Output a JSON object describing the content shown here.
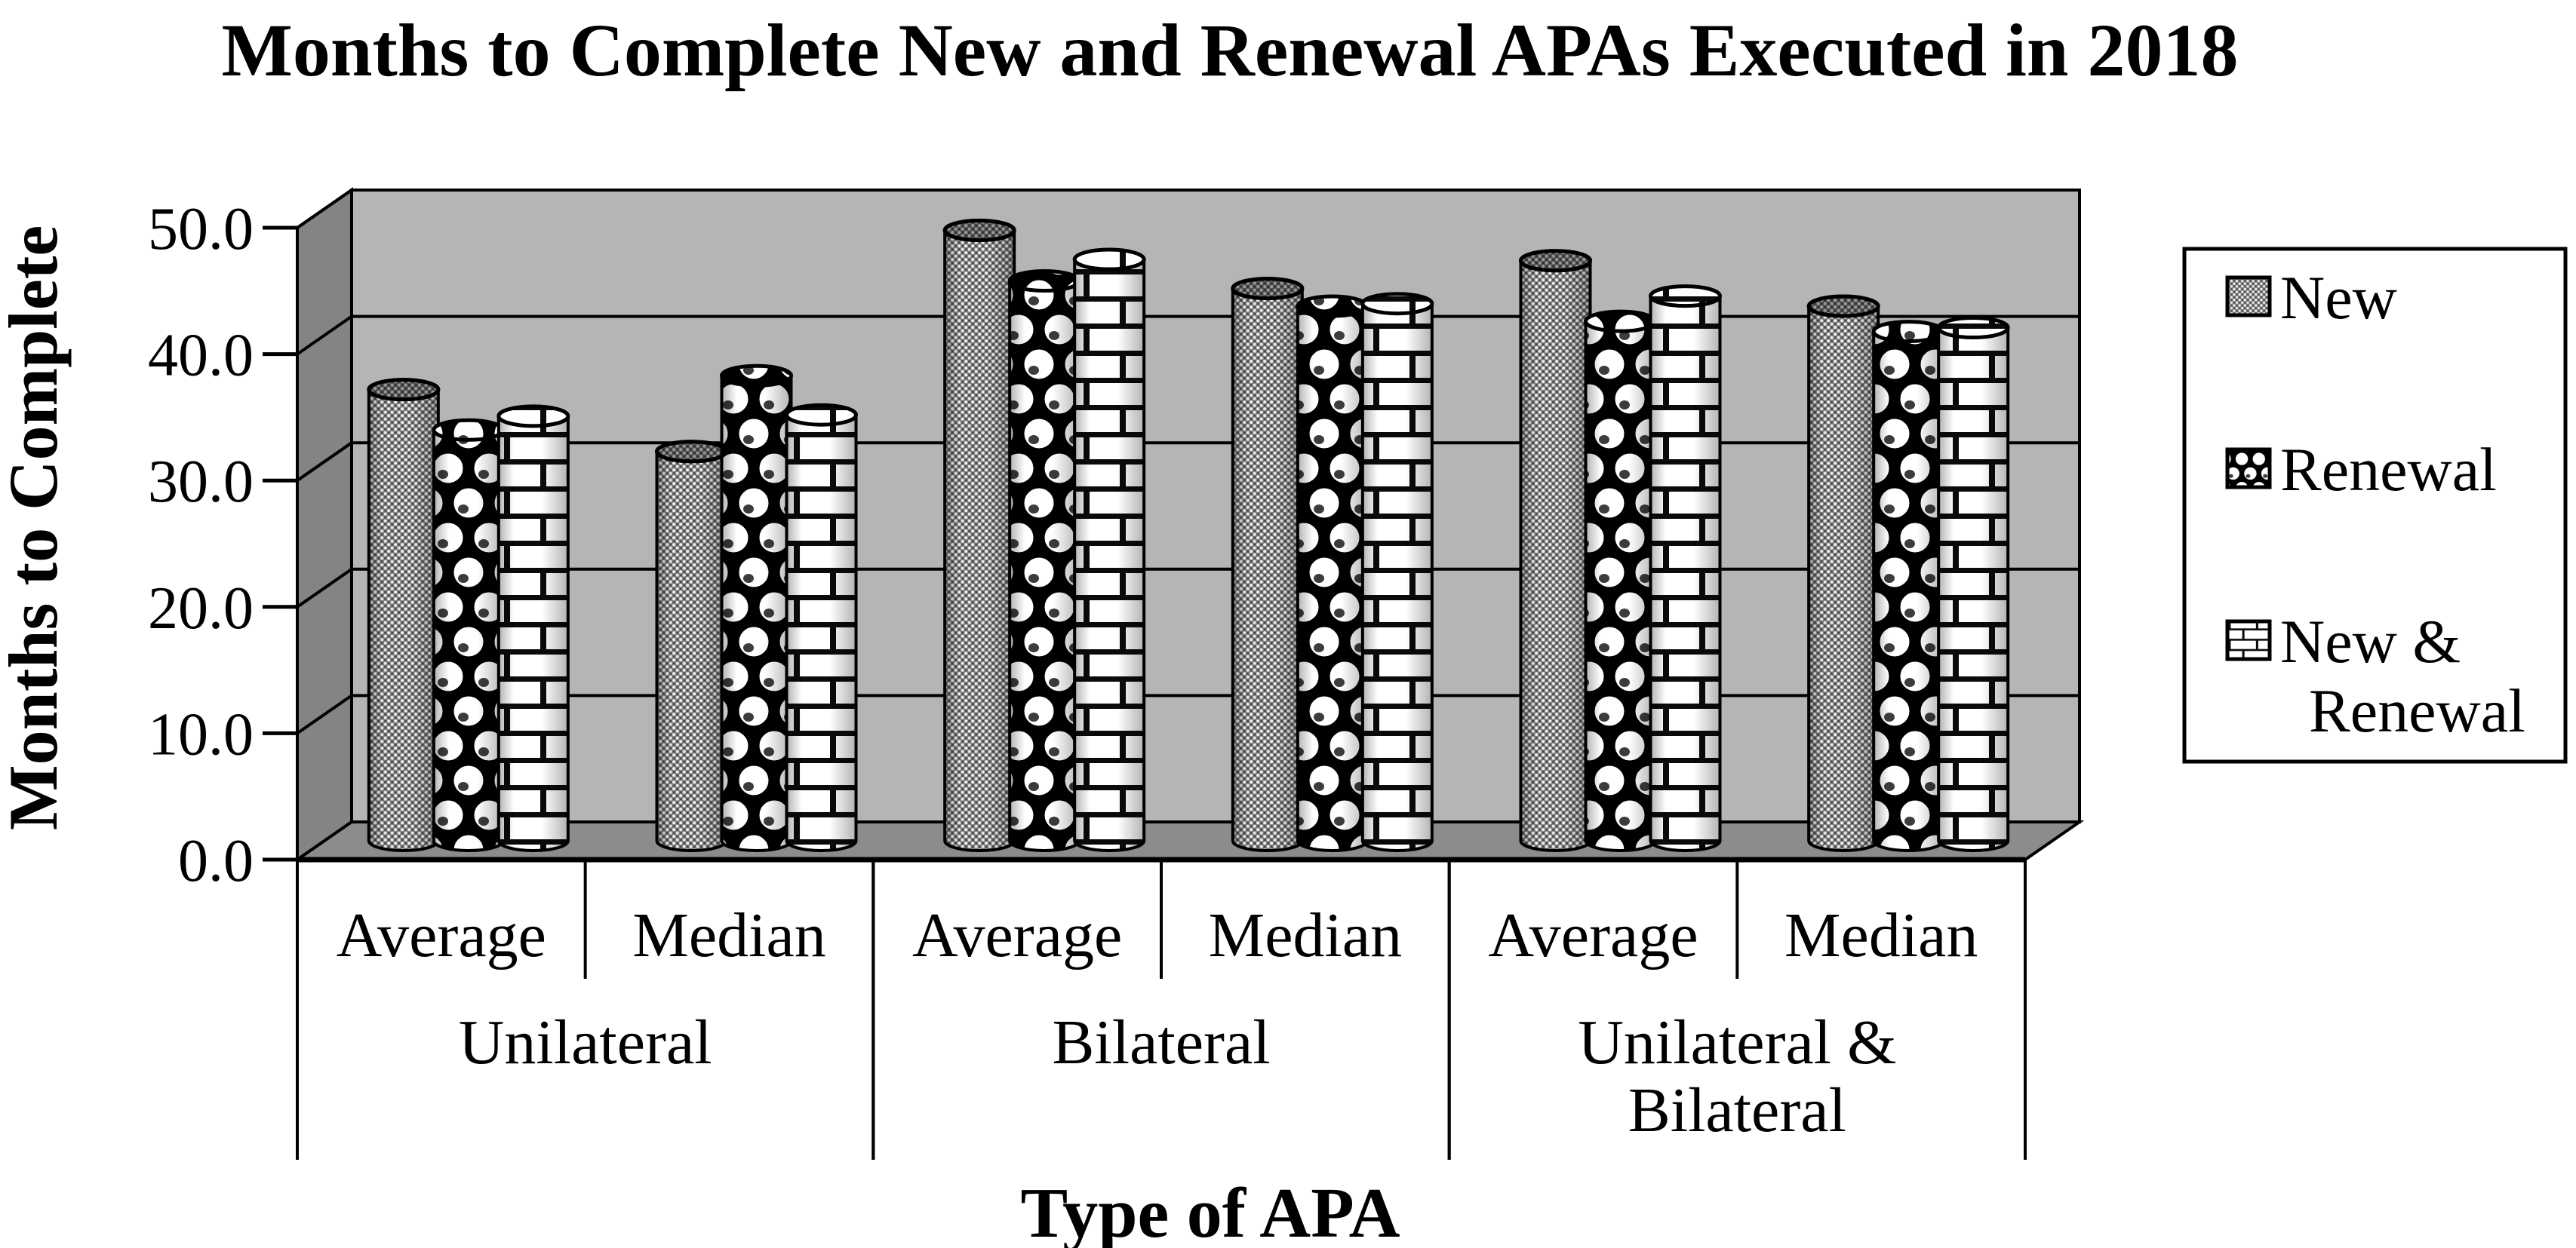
{
  "chart_data": {
    "type": "bar",
    "subtype": "3d-cylinder-clustered",
    "title": "Months to Complete New and Renewal APAs Executed in 2018",
    "y_axis": {
      "title": "Months to Complete",
      "min": 0,
      "max": 50,
      "tick_step": 10,
      "tick_labels": [
        "0.0",
        "10.0",
        "20.0",
        "30.0",
        "40.0",
        "50.0"
      ],
      "grid": true
    },
    "x_axis": {
      "title": "Type of APA",
      "groups": [
        {
          "label": "Unilateral",
          "label_lines": [
            "Unilateral"
          ],
          "categories": [
            "Average",
            "Median"
          ]
        },
        {
          "label": "Bilateral",
          "label_lines": [
            "Bilateral"
          ],
          "categories": [
            "Average",
            "Median"
          ]
        },
        {
          "label": "Unilateral & Bilateral",
          "label_lines": [
            "Unilateral &",
            "Bilateral"
          ],
          "categories": [
            "Average",
            "Median"
          ]
        }
      ]
    },
    "categories": [
      "Unilateral Average",
      "Unilateral Median",
      "Bilateral Average",
      "Bilateral Median",
      "Unilateral & Bilateral Average",
      "Unilateral & Bilateral Median"
    ],
    "series": [
      {
        "name": "New",
        "pattern": "dots"
      },
      {
        "name": "Renewal",
        "pattern": "circles"
      },
      {
        "name": "New & Renewal",
        "pattern": "bricks"
      }
    ],
    "values": {
      "New": [
        35.7,
        30.8,
        48.3,
        43.7,
        45.9,
        42.3
      ],
      "Renewal": [
        32.5,
        36.8,
        44.3,
        42.3,
        41.1,
        40.3
      ],
      "New & Renewal": [
        33.6,
        33.7,
        46.0,
        42.5,
        43.1,
        40.6
      ]
    },
    "legend": {
      "position": "right",
      "items": [
        {
          "label": "New",
          "line1": "New",
          "line2": ""
        },
        {
          "label": "Renewal",
          "line1": "Renewal",
          "line2": ""
        },
        {
          "label": "New & Renewal",
          "line1": "New &",
          "line2": "Renewal"
        }
      ]
    },
    "colors": {
      "background": "#ffffff",
      "wall_back": "#b5b5b5",
      "wall_side": "#848484",
      "floor": "#8c8c8c",
      "line": "#000000",
      "pattern_dark": "#000000",
      "pattern_light": "#ffffff",
      "dots_bg": "#7d7d7d"
    }
  }
}
